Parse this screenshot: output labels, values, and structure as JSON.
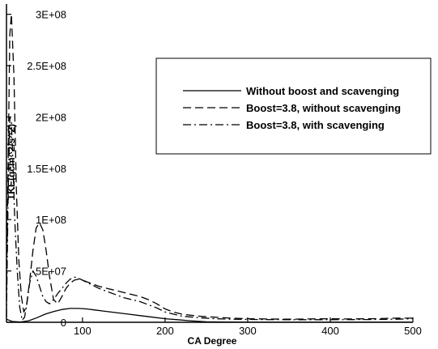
{
  "chart_data": {
    "type": "line",
    "title": "",
    "xlabel": "CA Degree",
    "ylabel": "TKE(gcm^2/s^2)",
    "xlim": [
      8,
      500
    ],
    "ylim": [
      0,
      310000000
    ],
    "xticks": [
      {
        "value": 100,
        "label": "100"
      },
      {
        "value": 200,
        "label": "200"
      },
      {
        "value": 300,
        "label": "300"
      },
      {
        "value": 400,
        "label": "400"
      },
      {
        "value": 500,
        "label": "500"
      }
    ],
    "yticks": [
      {
        "value": 0,
        "label": "0"
      },
      {
        "value": 50000000,
        "label": "5E+07"
      },
      {
        "value": 100000000,
        "label": "1E+08"
      },
      {
        "value": 150000000,
        "label": "1.5E+08"
      },
      {
        "value": 200000000,
        "label": "2E+08"
      },
      {
        "value": 250000000,
        "label": "2.5E+08"
      },
      {
        "value": 300000000,
        "label": "3E+08"
      }
    ],
    "grid": false,
    "legend_position": "upper-right",
    "series": [
      {
        "name": "Without boost and scavenging",
        "dash": "solid",
        "x": [
          8,
          15,
          25,
          35,
          45,
          55,
          65,
          75,
          85,
          95,
          105,
          115,
          125,
          140,
          155,
          170,
          185,
          200,
          215,
          230,
          250,
          270,
          300,
          350,
          400,
          450,
          500
        ],
        "y": [
          3000000,
          800000,
          300000,
          1500000,
          4500000,
          8000000,
          10500000,
          12500000,
          13500000,
          13500000,
          13000000,
          12000000,
          11000000,
          9500000,
          8000000,
          6500000,
          5000000,
          3500000,
          2500000,
          1500000,
          500000,
          200000,
          100000,
          50000,
          50000,
          50000,
          50000
        ]
      },
      {
        "name": "Boost=3.8, without scavenging",
        "dash": "dashed",
        "x": [
          8,
          10,
          12,
          14,
          17,
          20,
          23,
          26,
          29,
          32,
          36,
          40,
          44,
          48,
          52,
          56,
          60,
          65,
          70,
          75,
          80,
          85,
          90,
          95,
          100,
          110,
          120,
          130,
          140,
          150,
          160,
          170,
          180,
          190,
          200,
          210,
          220,
          240,
          260,
          280,
          300,
          320,
          350,
          380,
          400,
          420,
          450,
          480,
          500
        ],
        "y": [
          30000000,
          150000000,
          280000000,
          300000000,
          240000000,
          130000000,
          60000000,
          25000000,
          10000000,
          15000000,
          40000000,
          70000000,
          92000000,
          97000000,
          90000000,
          70000000,
          45000000,
          22000000,
          18000000,
          25000000,
          33000000,
          38000000,
          41000000,
          42000000,
          41000000,
          38000000,
          35000000,
          33000000,
          31000000,
          29000000,
          27000000,
          25000000,
          22000000,
          18000000,
          13000000,
          10000000,
          8000000,
          6000000,
          5000000,
          4000000,
          3500000,
          3200000,
          3000000,
          3300000,
          3500000,
          3200000,
          3500000,
          4000000,
          4000000
        ]
      },
      {
        "name": "Boost=3.8, with scavenging",
        "dash": "dashdot",
        "x": [
          8,
          10,
          12,
          14,
          16,
          18,
          21,
          24,
          27,
          30,
          33,
          36,
          40,
          44,
          48,
          52,
          56,
          60,
          65,
          70,
          75,
          80,
          85,
          90,
          95,
          100,
          110,
          120,
          130,
          140,
          150,
          160,
          170,
          180,
          190,
          200,
          210,
          220,
          240,
          260,
          280,
          300,
          320,
          350,
          380,
          400,
          420,
          450,
          480,
          500
        ],
        "y": [
          5000000,
          120000000,
          200000000,
          195000000,
          150000000,
          100000000,
          50000000,
          15000000,
          2000000,
          5000000,
          20000000,
          38000000,
          50000000,
          45000000,
          35000000,
          25000000,
          20000000,
          18000000,
          22000000,
          28000000,
          33000000,
          38000000,
          42000000,
          44000000,
          43000000,
          41000000,
          37000000,
          33000000,
          30000000,
          27000000,
          24000000,
          22000000,
          20000000,
          17000000,
          14000000,
          10000000,
          8000000,
          6000000,
          4500000,
          3500000,
          3000000,
          2800000,
          2600000,
          2500000,
          2500000,
          2500000,
          2600000,
          2700000,
          3000000,
          3500000
        ]
      }
    ]
  }
}
